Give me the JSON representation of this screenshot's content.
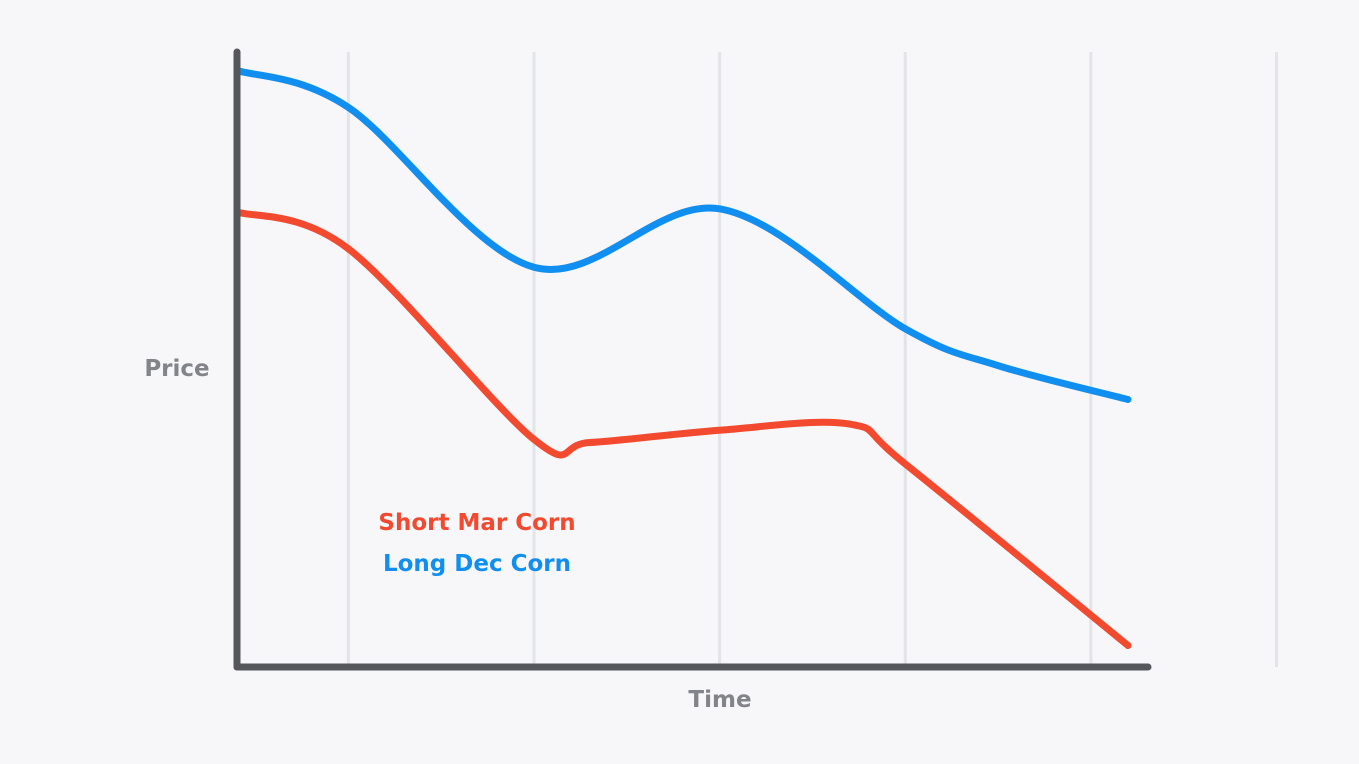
{
  "chart_data": {
    "type": "line",
    "title": "",
    "xlabel": "Time",
    "ylabel": "Price",
    "x": [
      0,
      1,
      2,
      3,
      4,
      5
    ],
    "xlim": [
      -0.6,
      4.2
    ],
    "ylim": [
      0,
      100
    ],
    "grid": "vertical",
    "legend_position": "center-left",
    "series": [
      {
        "name": "Short Mar Corn",
        "color": "#f2492f",
        "points": [
          [
            -0.6,
            74
          ],
          [
            0.0,
            68
          ],
          [
            1.0,
            37
          ],
          [
            1.3,
            36.5
          ],
          [
            2.0,
            38.5
          ],
          [
            2.7,
            39.5
          ],
          [
            3.0,
            33
          ],
          [
            4.2,
            3.5
          ]
        ]
      },
      {
        "name": "Long Dec Corn",
        "color": "#118ff0",
        "points": [
          [
            -0.6,
            97
          ],
          [
            0.0,
            91
          ],
          [
            1.0,
            65
          ],
          [
            2.0,
            74.5
          ],
          [
            3.0,
            55
          ],
          [
            3.5,
            49
          ],
          [
            4.2,
            43.5
          ]
        ]
      }
    ],
    "colors": {
      "axis": "#55575d",
      "grid": "#e3e4e8",
      "axis_text": "#828489"
    }
  }
}
